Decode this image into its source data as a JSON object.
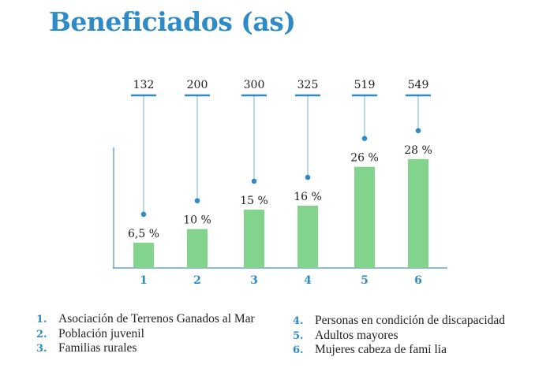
{
  "title": "Beneficiados (as)",
  "chart_data": {
    "type": "bar",
    "title": "Beneficiados (as)",
    "categories": [
      "1",
      "2",
      "3",
      "4",
      "5",
      "6"
    ],
    "values": [
      6.5,
      10,
      15,
      16,
      26,
      28
    ],
    "value_labels": [
      "6,5 %",
      "10 %",
      "15 %",
      "16 %",
      "26 %",
      "28 %"
    ],
    "counts": [
      132,
      200,
      300,
      325,
      519,
      549
    ],
    "ylim": [
      0,
      31
    ],
    "grid": false,
    "colors": {
      "bar": "#82d38c",
      "accent": "#2e8bc7",
      "axis": "#4a90c8"
    }
  },
  "legend": [
    {
      "num": "1.",
      "label": "Asociación de Terrenos Ganados al Mar"
    },
    {
      "num": "2.",
      "label": "Población juvenil"
    },
    {
      "num": "3.",
      "label": "Familias rurales"
    },
    {
      "num": "4.",
      "label": "Personas en condición de discapacidad"
    },
    {
      "num": "5.",
      "label": "Adultos mayores"
    },
    {
      "num": "6.",
      "label": "Mujeres cabeza de fami lia"
    }
  ]
}
